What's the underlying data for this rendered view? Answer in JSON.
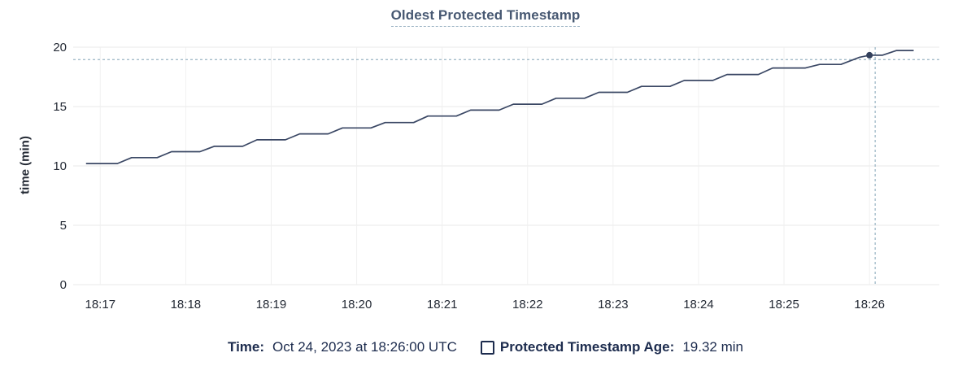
{
  "title": "Oldest Protected Timestamp",
  "y_axis_title": "time (min)",
  "footer": {
    "time_label": "Time:",
    "time_value": "Oct 24, 2023 at 18:26:00 UTC",
    "series_label": "Protected Timestamp Age:",
    "series_value": "19.32 min"
  },
  "colors": {
    "line": "#3a4764",
    "point": "#33405c",
    "crosshair": "#a4bcca",
    "grid_h": "#e8e8e8",
    "grid_v": "#f0f0f0",
    "title_text": "#475872",
    "title_underline": "#9fb6c6",
    "tick_text": "#242a35",
    "footer_text": "#1d2c4e"
  },
  "chart_data": {
    "type": "line",
    "title": "Oldest Protected Timestamp",
    "xlabel": "",
    "ylabel": "time (min)",
    "ylim": [
      0,
      20
    ],
    "y_ticks": [
      0,
      5,
      10,
      15,
      20
    ],
    "x_ticks": [
      {
        "label": "18:17",
        "t": 0
      },
      {
        "label": "18:18",
        "t": 60
      },
      {
        "label": "18:19",
        "t": 120
      },
      {
        "label": "18:20",
        "t": 180
      },
      {
        "label": "18:21",
        "t": 240
      },
      {
        "label": "18:22",
        "t": 300
      },
      {
        "label": "18:23",
        "t": 360
      },
      {
        "label": "18:24",
        "t": 420
      },
      {
        "label": "18:25",
        "t": 480
      },
      {
        "label": "18:26",
        "t": 540
      }
    ],
    "x_domain_seconds": [
      -19,
      589
    ],
    "x_unit_note": "t = seconds relative to 18:26 tick minus 9 min (18:17:00)",
    "grid": true,
    "legend_position": "bottom",
    "series": [
      {
        "name": "Protected Timestamp Age",
        "unit": "min",
        "points": [
          [
            -10,
            10.2
          ],
          [
            12,
            10.2
          ],
          [
            22,
            10.7
          ],
          [
            40,
            10.7
          ],
          [
            50,
            11.2
          ],
          [
            70,
            11.2
          ],
          [
            80,
            11.65
          ],
          [
            100,
            11.65
          ],
          [
            110,
            12.2
          ],
          [
            130,
            12.2
          ],
          [
            140,
            12.7
          ],
          [
            160,
            12.7
          ],
          [
            170,
            13.2
          ],
          [
            190,
            13.2
          ],
          [
            200,
            13.65
          ],
          [
            220,
            13.65
          ],
          [
            230,
            14.2
          ],
          [
            250,
            14.2
          ],
          [
            260,
            14.7
          ],
          [
            280,
            14.7
          ],
          [
            290,
            15.2
          ],
          [
            310,
            15.2
          ],
          [
            320,
            15.7
          ],
          [
            340,
            15.7
          ],
          [
            350,
            16.2
          ],
          [
            370,
            16.2
          ],
          [
            380,
            16.7
          ],
          [
            400,
            16.7
          ],
          [
            410,
            17.2
          ],
          [
            430,
            17.2
          ],
          [
            440,
            17.7
          ],
          [
            462,
            17.7
          ],
          [
            472,
            18.25
          ],
          [
            495,
            18.25
          ],
          [
            505,
            18.55
          ],
          [
            520,
            18.55
          ],
          [
            533,
            19.15
          ],
          [
            540,
            19.32
          ],
          [
            549,
            19.32
          ],
          [
            559,
            19.72
          ],
          [
            571,
            19.72
          ]
        ]
      }
    ],
    "hover": {
      "time": "18:26:00",
      "t": 540,
      "value": 19.32,
      "crosshair_t": 544,
      "crosshair_value": 18.95
    }
  }
}
